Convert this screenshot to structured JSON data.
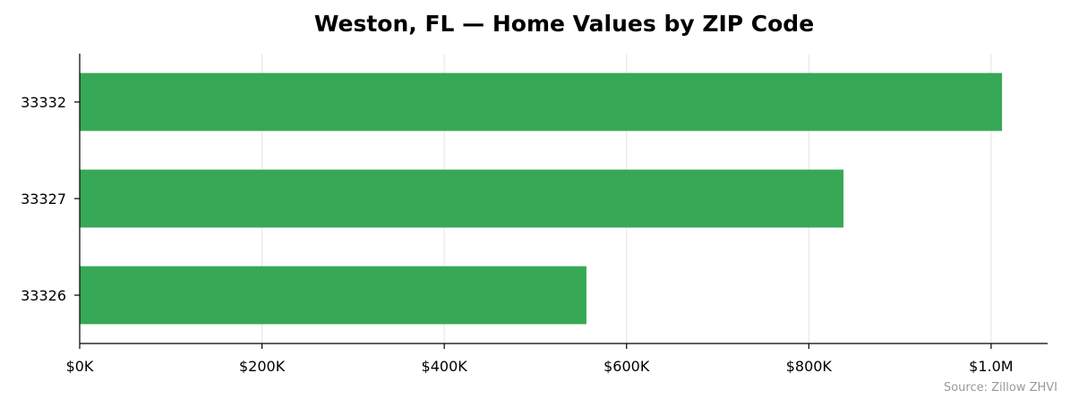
{
  "chart_data": {
    "type": "bar",
    "orientation": "horizontal",
    "title": "Weston, FL — Home Values by ZIP Code",
    "xlabel": "",
    "ylabel": "",
    "categories": [
      "33332",
      "33327",
      "33326"
    ],
    "values": [
      1012000,
      838000,
      556000
    ],
    "xlim": [
      0,
      1062000
    ],
    "x_ticks": [
      0,
      200000,
      400000,
      600000,
      800000,
      1000000
    ],
    "x_tick_labels": [
      "$0K",
      "$200K",
      "$400K",
      "$600K",
      "$800K",
      "$1.0M"
    ],
    "grid": "vertical",
    "bar_color": "#37a855",
    "source_note": "Source: Zillow ZHVI"
  }
}
